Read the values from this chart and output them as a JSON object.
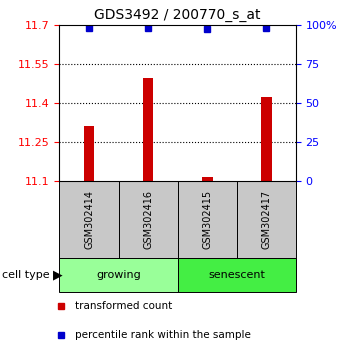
{
  "title": "GDS3492 / 200770_s_at",
  "samples": [
    "GSM302414",
    "GSM302416",
    "GSM302415",
    "GSM302417"
  ],
  "groups": [
    "growing",
    "growing",
    "senescent",
    "senescent"
  ],
  "bar_values": [
    11.31,
    11.495,
    11.115,
    11.42
  ],
  "percentile_values": [
    98,
    98,
    97,
    98
  ],
  "ylim": [
    11.1,
    11.7
  ],
  "yticks_left": [
    11.1,
    11.25,
    11.4,
    11.55,
    11.7
  ],
  "yticks_right": [
    0,
    25,
    50,
    75,
    100
  ],
  "bar_color": "#cc0000",
  "percentile_color": "#0000cc",
  "growing_color": "#99ff99",
  "senescent_color": "#44ee44",
  "sample_box_color": "#c8c8c8",
  "legend_items": [
    {
      "label": "transformed count",
      "color": "#cc0000"
    },
    {
      "label": "percentile rank within the sample",
      "color": "#0000cc"
    }
  ]
}
